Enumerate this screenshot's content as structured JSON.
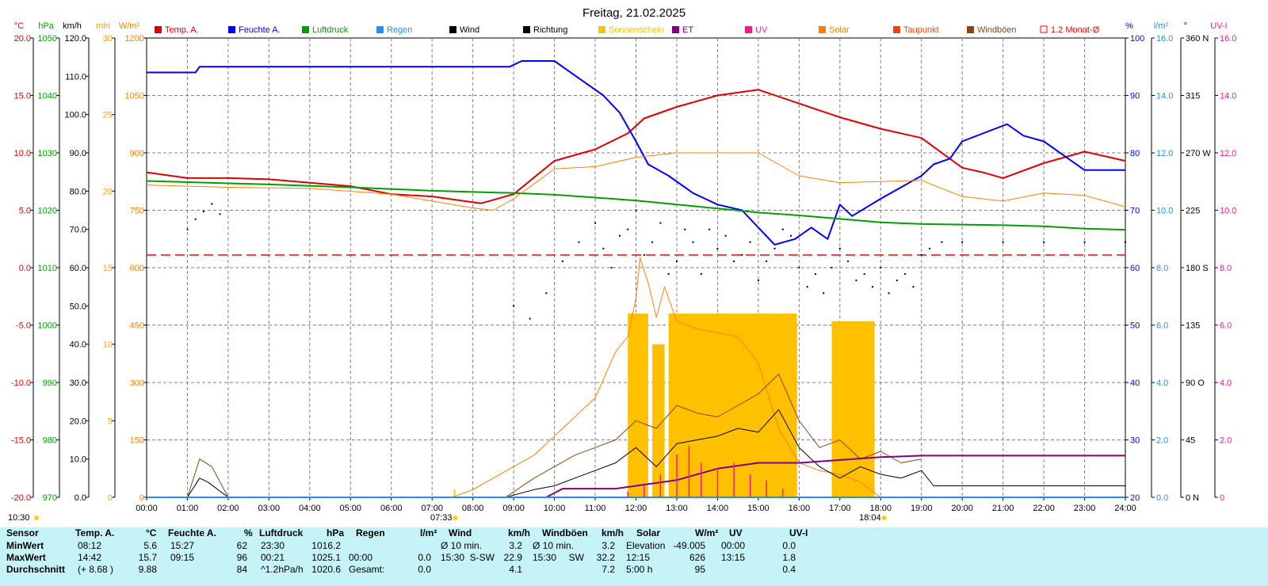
{
  "title": "Freitag, 21.02.2025",
  "unit_labels": {
    "temp": "°C",
    "pressure": "hPa",
    "wind": "km/h",
    "sunshine": "min",
    "solar": "W/m²",
    "humidity": "%",
    "rain": "l/m²",
    "direction": "°",
    "uv": "UV-I"
  },
  "legend": [
    {
      "label": "Temp. A.",
      "color": "#e00000"
    },
    {
      "label": "Feuchte A.",
      "color": "#0000ff"
    },
    {
      "label": "Luftdruck",
      "color": "#00a000"
    },
    {
      "label": "Regen",
      "color": "#1e90ff"
    },
    {
      "label": "Wind",
      "color": "#000000"
    },
    {
      "label": "Richtung",
      "color": "#000000"
    },
    {
      "label": "Sonnenschein",
      "color": "#ffc000"
    },
    {
      "label": "ET",
      "color": "#800080"
    },
    {
      "label": "UV",
      "color": "#ff1493"
    },
    {
      "label": "Solar",
      "color": "#ff8000"
    },
    {
      "label": "Taupunkt",
      "color": "#ff4000"
    },
    {
      "label": "Windböen",
      "color": "#8b4513"
    },
    {
      "label": "1.2 Monat-Ø",
      "color": "#ff0000"
    }
  ],
  "axes": {
    "temp_ticks": [
      "20.0",
      "15.0",
      "10.0",
      "5.0",
      "0.0",
      "-5.0",
      "-10.0",
      "-15.0",
      "-20.0"
    ],
    "pressure_ticks": [
      "1050",
      "1040",
      "1030",
      "1020",
      "1010",
      "1000",
      "990",
      "980",
      "970"
    ],
    "wind_ticks": [
      "120.0",
      "110.0",
      "100.0",
      "90.0",
      "80.0",
      "70.0",
      "60.0",
      "50.0",
      "40.0",
      "30.0",
      "20.0",
      "10.0",
      "0.0"
    ],
    "sunshine_ticks": [
      "30",
      "25",
      "20",
      "15",
      "10",
      "5",
      "0"
    ],
    "solar_ticks": [
      "1200",
      "1050",
      "900",
      "750",
      "600",
      "450",
      "300",
      "150",
      "0"
    ],
    "humidity_ticks": [
      "100",
      "90",
      "80",
      "70",
      "60",
      "50",
      "40",
      "30",
      "20"
    ],
    "rain_ticks": [
      "16.0",
      "14.0",
      "12.0",
      "10.0",
      "8.0",
      "6.0",
      "4.0",
      "2.0",
      "0.0"
    ],
    "direction_ticks": [
      "360 N",
      "315",
      "270 W",
      "225",
      "180 S",
      "135",
      "90 O",
      "45",
      "0 N"
    ],
    "uv_ticks": [
      "16.0",
      "14.0",
      "12.0",
      "10.0",
      "8.0",
      "6.0",
      "4.0",
      "2.0",
      "0"
    ],
    "time_ticks": [
      "00:00",
      "01:00",
      "02:00",
      "03:00",
      "04:00",
      "05:00",
      "06:00",
      "07:00",
      "08:00",
      "09:00",
      "10:00",
      "11:00",
      "12:00",
      "13:00",
      "14:00",
      "15:00",
      "16:00",
      "17:00",
      "18:00",
      "19:00",
      "20:00",
      "21:00",
      "22:00",
      "23:00",
      "24:00"
    ]
  },
  "markers": {
    "moon": "10:30",
    "sunrise": "07:33",
    "sunset": "18:04"
  },
  "chart_data": {
    "type": "line",
    "title": "Freitag, 21.02.2025",
    "x_unit": "hours",
    "xlim": [
      0,
      24
    ],
    "series": [
      {
        "name": "Temp. A.",
        "unit": "°C",
        "ylim": [
          -20,
          20
        ],
        "color": "#e00000",
        "x": [
          0,
          1,
          2,
          3,
          4,
          5,
          6,
          7,
          8,
          8.2,
          9,
          10,
          11,
          11.8,
          12.2,
          13,
          14,
          15,
          16,
          17,
          18,
          19,
          20,
          20.5,
          21,
          22,
          23,
          24
        ],
        "y": [
          8.3,
          7.8,
          7.8,
          7.7,
          7.4,
          7.1,
          6.4,
          6.2,
          5.7,
          5.6,
          6.4,
          9.3,
          10.3,
          11.7,
          13,
          14,
          15,
          15.5,
          14.3,
          13.1,
          12.1,
          11.3,
          8.7,
          8.3,
          7.8,
          9.1,
          10.1,
          9.3
        ]
      },
      {
        "name": "Feuchte A.",
        "unit": "%",
        "ylim": [
          20,
          100
        ],
        "color": "#0000ff",
        "x": [
          0,
          1.2,
          1.3,
          2,
          5,
          8,
          8.9,
          9.2,
          9.8,
          10,
          10.6,
          11.2,
          11.6,
          12,
          12.3,
          12.8,
          13.4,
          14,
          14.6,
          15,
          15.4,
          15.9,
          16.3,
          16.7,
          17,
          17.3,
          18,
          19,
          19.3,
          19.7,
          20,
          21.1,
          21.5,
          22,
          22.6,
          23,
          24
        ],
        "y": [
          94,
          94,
          95,
          95,
          95,
          95,
          95,
          96,
          96,
          96,
          93,
          90,
          87,
          82,
          78,
          76,
          73,
          71,
          70,
          67,
          64,
          65,
          67,
          65,
          71,
          69,
          72,
          76,
          78,
          79,
          82,
          85,
          83,
          82,
          79,
          77,
          77
        ]
      },
      {
        "name": "Luftdruck",
        "unit": "hPa",
        "ylim": [
          970,
          1050
        ],
        "color": "#00a000",
        "x": [
          0,
          3,
          5,
          7,
          9,
          10,
          11,
          12,
          13,
          14,
          15,
          16,
          17,
          18,
          19,
          20,
          21,
          22,
          23,
          24
        ],
        "y": [
          1025.1,
          1024.5,
          1024,
          1023.4,
          1023,
          1022.7,
          1022.2,
          1021.7,
          1021,
          1020.3,
          1019.6,
          1019.1,
          1018.5,
          1017.9,
          1017.6,
          1017.5,
          1017.4,
          1017.2,
          1016.8,
          1016.6
        ]
      },
      {
        "name": "Taupunkt",
        "unit": "°C",
        "ylim": [
          -20,
          20
        ],
        "color": "#ff8000",
        "x": [
          0,
          2,
          4,
          6,
          7,
          8,
          8.5,
          9,
          10,
          11,
          12,
          13,
          14,
          15,
          16,
          17,
          18,
          19,
          20,
          21,
          22,
          23,
          24
        ],
        "y": [
          7.2,
          7,
          6.9,
          6.4,
          5.8,
          5.2,
          5,
          6,
          8.6,
          8.8,
          9.6,
          10,
          10,
          10,
          8,
          7.4,
          7.5,
          7.6,
          6.2,
          5.8,
          6.5,
          6.3,
          5.3
        ]
      },
      {
        "name": "Solar",
        "unit": "W/m²",
        "ylim": [
          0,
          1200
        ],
        "color": "#ff8000",
        "x": [
          7.5,
          8,
          8.5,
          9,
          9.5,
          10,
          10.5,
          11,
          11.5,
          11.8,
          12,
          12.1,
          12.3,
          12.5,
          12.7,
          13,
          13.5,
          14,
          14.5,
          15,
          15.5,
          16,
          16.5,
          17,
          17.5,
          18
        ],
        "y": [
          0,
          20,
          50,
          80,
          110,
          160,
          210,
          260,
          380,
          420,
          520,
          626,
          560,
          470,
          550,
          460,
          440,
          430,
          420,
          350,
          180,
          90,
          70,
          60,
          40,
          0
        ]
      },
      {
        "name": "Wind",
        "unit": "km/h",
        "ylim": [
          0,
          120
        ],
        "color": "#000000",
        "x": [
          0,
          1,
          1.3,
          1.5,
          2,
          8.8,
          9.5,
          10,
          10.5,
          11,
          11.5,
          12,
          12.5,
          13,
          13.5,
          14,
          14.5,
          15,
          15.5,
          16,
          16.5,
          17,
          17.5,
          18,
          18.5,
          19,
          19.3,
          24
        ],
        "y": [
          0,
          0,
          5,
          4,
          0,
          0,
          2,
          3,
          5,
          7,
          9,
          13,
          8,
          14,
          15,
          16,
          18,
          17,
          22.9,
          13,
          8,
          5,
          8,
          6,
          5,
          7,
          3,
          3
        ]
      },
      {
        "name": "Windböen",
        "unit": "km/h",
        "ylim": [
          0,
          120
        ],
        "color": "#8b4513",
        "x": [
          0,
          1,
          1.3,
          1.6,
          2,
          8.8,
          9.5,
          10,
          10.5,
          11,
          11.5,
          12,
          12.5,
          13,
          13.5,
          14,
          14.5,
          15,
          15.5,
          16,
          16.5,
          17,
          17.5,
          18,
          18.5,
          19
        ],
        "y": [
          0,
          0,
          10,
          8,
          0,
          0,
          5,
          8,
          11,
          13,
          15,
          20,
          18,
          24,
          22,
          21,
          24,
          27,
          32.2,
          20,
          13,
          15,
          10,
          12,
          9,
          10
        ]
      },
      {
        "name": "ET",
        "unit": "l/m²",
        "ylim": [
          0,
          16
        ],
        "color": "#800080",
        "x": [
          0,
          9.8,
          10.2,
          11.5,
          12,
          12.5,
          13,
          13.5,
          14,
          14.5,
          15,
          15.5,
          16,
          17,
          18,
          19,
          24
        ],
        "y": [
          0,
          0,
          0.3,
          0.3,
          0.4,
          0.5,
          0.6,
          0.8,
          1,
          1.1,
          1.2,
          1.2,
          1.2,
          1.3,
          1.4,
          1.45,
          1.45
        ]
      },
      {
        "name": "Regen",
        "unit": "l/m²",
        "ylim": [
          0,
          16
        ],
        "color": "#1e90ff",
        "x": [
          0,
          24
        ],
        "y": [
          0,
          0
        ]
      },
      {
        "name": "1.2 Monat-Ø",
        "unit": "°C",
        "ylim": [
          -20,
          20
        ],
        "color": "#ff0000",
        "x": [
          0,
          24
        ],
        "y": [
          1.1,
          1.1
        ]
      }
    ],
    "sunshine_blocks": [
      {
        "start": 11.8,
        "end": 12.3,
        "minutes": 12
      },
      {
        "start": 12.4,
        "end": 12.7,
        "minutes": 10
      },
      {
        "start": 12.8,
        "end": 15.95,
        "minutes": 12
      },
      {
        "start": 16.8,
        "end": 17.85,
        "minutes": 11.5
      }
    ],
    "uv_points": {
      "x": [
        11.8,
        12.2,
        12.6,
        13,
        13.3,
        13.6,
        14,
        14.4,
        14.8,
        15.2,
        15.6
      ],
      "y": [
        0.2,
        0.4,
        0.8,
        1.5,
        1.8,
        1.2,
        1,
        1.2,
        0.8,
        0.6,
        0.3
      ]
    },
    "direction_points": {
      "x": [
        1.0,
        1.2,
        1.4,
        1.6,
        1.8,
        9.0,
        9.4,
        9.8,
        10.2,
        10.6,
        11.0,
        11.2,
        11.4,
        11.6,
        11.8,
        12.0,
        12.2,
        12.4,
        12.6,
        12.8,
        13.0,
        13.2,
        13.4,
        13.6,
        13.8,
        14.0,
        14.2,
        14.4,
        14.6,
        14.8,
        15.0,
        15.2,
        15.4,
        15.6,
        15.8,
        16.0,
        16.2,
        16.4,
        16.6,
        16.8,
        17.0,
        17.2,
        17.4,
        17.6,
        17.8,
        18.0,
        18.2,
        18.4,
        18.6,
        18.8,
        19.0,
        19.2,
        19.5,
        20,
        21,
        22,
        23,
        24
      ],
      "y": [
        210,
        218,
        224,
        230,
        222,
        150,
        140,
        160,
        185,
        200,
        215,
        195,
        180,
        205,
        210,
        225,
        190,
        200,
        215,
        175,
        185,
        210,
        200,
        175,
        210,
        195,
        205,
        185,
        190,
        200,
        170,
        185,
        195,
        210,
        205,
        180,
        165,
        175,
        160,
        180,
        195,
        185,
        170,
        175,
        165,
        180,
        160,
        170,
        175,
        165,
        190,
        195,
        200,
        200,
        200,
        200,
        200,
        200
      ]
    }
  },
  "stats": {
    "headers": {
      "sensor": "Sensor",
      "temp": "Temp. A.",
      "temp_unit": "°C",
      "hum": "Feuchte A.",
      "hum_unit": "%",
      "press": "Luftdruck",
      "press_unit": "hPa",
      "rain": "Regen",
      "rain_unit": "l/m²",
      "wind": "Wind",
      "wind_unit": "km/h",
      "gust": "Windböen",
      "gust_unit": "km/h",
      "solar": "Solar",
      "solar_unit": "W/m²",
      "uv": "UV",
      "uv_unit": "UV-I"
    },
    "rows": [
      {
        "label": "MinWert",
        "temp_t": "08:12",
        "temp_v": "5.6",
        "hum_t": "15:27",
        "hum_v": "62",
        "press_t": "23:30",
        "press_v": "1016.2",
        "rain_t": "",
        "rain_v": "",
        "wind_t": "Ø 10 min.",
        "wind_d": "",
        "wind_v": "3.2",
        "gust_t": "Ø 10 min.",
        "gust_d": "",
        "gust_v": "3.2",
        "solar_t": "Elevation",
        "solar_v": "-49.005",
        "uv_t": "00:00",
        "uv_v": "0.0"
      },
      {
        "label": "MaxWert",
        "temp_t": "14:42",
        "temp_v": "15.7",
        "hum_t": "09:15",
        "hum_v": "96",
        "press_t": "00:21",
        "press_v": "1025.1",
        "rain_t": "00:00",
        "rain_v": "0.0",
        "wind_t": "15:30",
        "wind_d": "S-SW",
        "wind_v": "22.9",
        "gust_t": "15:30",
        "gust_d": "SW",
        "gust_v": "32.2",
        "solar_t": "12:15",
        "solar_v": "626",
        "uv_t": "13:15",
        "uv_v": "1.8"
      },
      {
        "label": "Durchschnitt",
        "temp_t": "(+ 8.68 )",
        "temp_v": "9.88",
        "hum_t": "",
        "hum_v": "84",
        "press_t": "^1.2hPa/h",
        "press_v": "1020.6",
        "rain_t": "Gesamt:",
        "rain_v": "0.0",
        "wind_t": "",
        "wind_d": "",
        "wind_v": "4.1",
        "gust_t": "",
        "gust_d": "",
        "gust_v": "7.2",
        "solar_t": "5:00 h",
        "solar_v": "95",
        "uv_t": "",
        "uv_v": "0.4"
      }
    ]
  }
}
